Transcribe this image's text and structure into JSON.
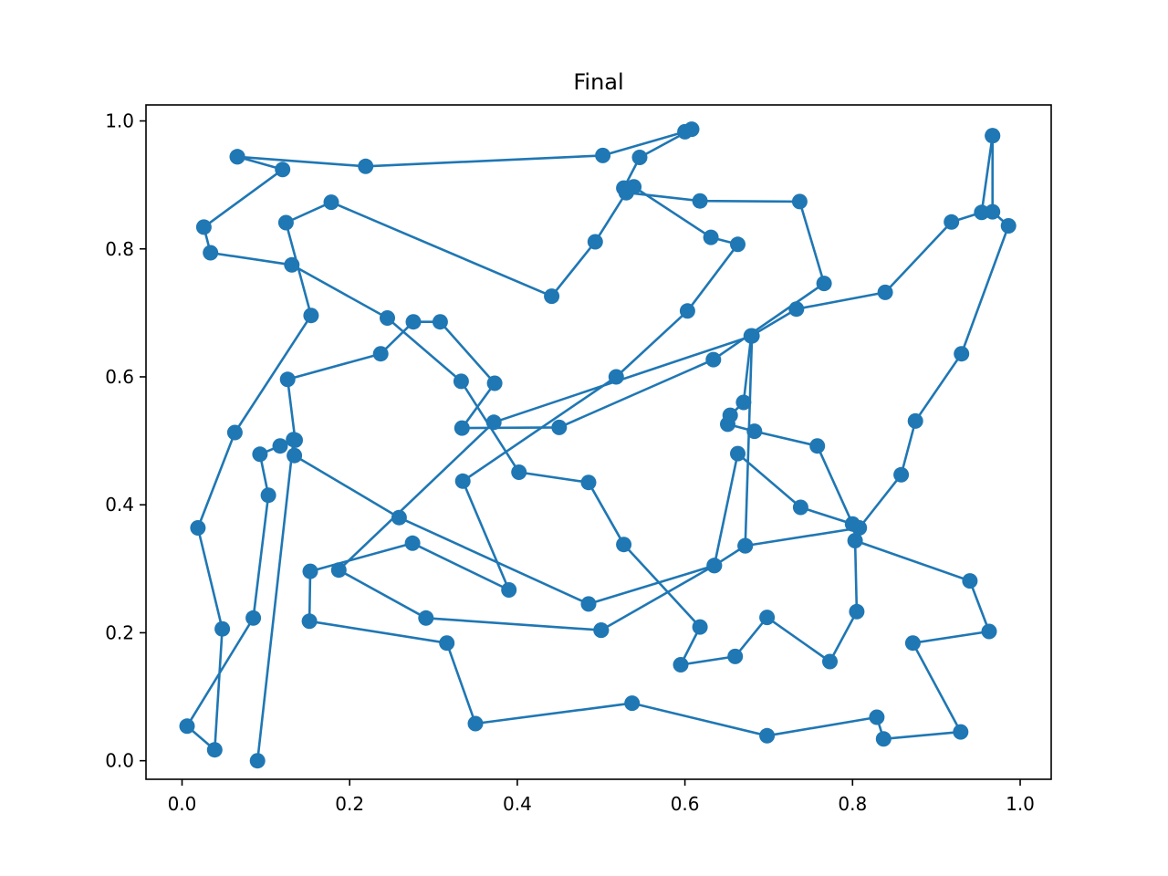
{
  "chart_data": {
    "type": "line",
    "title": "Final",
    "xlabel": "",
    "ylabel": "",
    "xlim": [
      -0.043,
      1.037
    ],
    "ylim": [
      -0.029,
      1.025
    ],
    "xticks": [
      0.0,
      0.2,
      0.4,
      0.6,
      0.8,
      1.0
    ],
    "xtick_labels": [
      "0.0",
      "0.2",
      "0.4",
      "0.6",
      "0.8",
      "1.0"
    ],
    "yticks": [
      0.0,
      0.2,
      0.4,
      0.6,
      0.8,
      1.0
    ],
    "ytick_labels": [
      "0.0",
      "0.2",
      "0.4",
      "0.6",
      "0.8",
      "1.0"
    ],
    "grid": false,
    "legend": "none",
    "marker": "circle",
    "series": [
      {
        "color": "#1f77b4",
        "points": [
          [
            0.066,
            0.944
          ],
          [
            0.219,
            0.929
          ],
          [
            0.502,
            0.946
          ],
          [
            0.6,
            0.983
          ],
          [
            0.608,
            0.987
          ],
          [
            0.546,
            0.943
          ],
          [
            0.527,
            0.895
          ],
          [
            0.539,
            0.897
          ],
          [
            0.631,
            0.818
          ],
          [
            0.663,
            0.807
          ],
          [
            0.603,
            0.703
          ],
          [
            0.518,
            0.6
          ],
          [
            0.335,
            0.437
          ],
          [
            0.39,
            0.267
          ],
          [
            0.275,
            0.34
          ],
          [
            0.153,
            0.296
          ],
          [
            0.152,
            0.218
          ],
          [
            0.316,
            0.184
          ],
          [
            0.35,
            0.058
          ],
          [
            0.537,
            0.09
          ],
          [
            0.698,
            0.039
          ],
          [
            0.829,
            0.068
          ],
          [
            0.837,
            0.034
          ],
          [
            0.929,
            0.045
          ],
          [
            0.872,
            0.184
          ],
          [
            0.963,
            0.202
          ],
          [
            0.94,
            0.281
          ],
          [
            0.803,
            0.344
          ],
          [
            0.805,
            0.233
          ],
          [
            0.773,
            0.155
          ],
          [
            0.698,
            0.224
          ],
          [
            0.66,
            0.163
          ],
          [
            0.595,
            0.15
          ],
          [
            0.618,
            0.209
          ],
          [
            0.527,
            0.338
          ],
          [
            0.485,
            0.435
          ],
          [
            0.402,
            0.451
          ],
          [
            0.333,
            0.593
          ],
          [
            0.245,
            0.692
          ],
          [
            0.131,
            0.775
          ],
          [
            0.034,
            0.794
          ],
          [
            0.026,
            0.834
          ],
          [
            0.12,
            0.924
          ],
          [
            0.066,
            0.944
          ]
        ]
      },
      {
        "color": "#1f77b4",
        "points": [
          [
            0.53,
            0.888
          ],
          [
            0.618,
            0.875
          ],
          [
            0.737,
            0.874
          ],
          [
            0.766,
            0.746
          ],
          [
            0.634,
            0.627
          ],
          [
            0.45,
            0.521
          ],
          [
            0.334,
            0.52
          ],
          [
            0.373,
            0.59
          ],
          [
            0.308,
            0.686
          ],
          [
            0.276,
            0.686
          ],
          [
            0.237,
            0.636
          ],
          [
            0.126,
            0.596
          ],
          [
            0.135,
            0.501
          ],
          [
            0.117,
            0.492
          ],
          [
            0.093,
            0.479
          ],
          [
            0.103,
            0.415
          ],
          [
            0.085,
            0.223
          ],
          [
            0.006,
            0.054
          ],
          [
            0.039,
            0.017
          ],
          [
            0.048,
            0.206
          ],
          [
            0.019,
            0.364
          ],
          [
            0.063,
            0.513
          ],
          [
            0.154,
            0.696
          ],
          [
            0.124,
            0.841
          ],
          [
            0.178,
            0.873
          ],
          [
            0.441,
            0.726
          ],
          [
            0.493,
            0.811
          ],
          [
            0.53,
            0.888
          ]
        ]
      },
      {
        "color": "#1f77b4",
        "points": [
          [
            0.967,
            0.977
          ],
          [
            0.954,
            0.857
          ],
          [
            0.918,
            0.842
          ],
          [
            0.839,
            0.732
          ],
          [
            0.733,
            0.706
          ],
          [
            0.679,
            0.664
          ],
          [
            0.67,
            0.56
          ],
          [
            0.654,
            0.54
          ],
          [
            0.651,
            0.526
          ],
          [
            0.683,
            0.515
          ],
          [
            0.758,
            0.492
          ],
          [
            0.8,
            0.37
          ],
          [
            0.738,
            0.396
          ],
          [
            0.663,
            0.48
          ],
          [
            0.635,
            0.305
          ],
          [
            0.485,
            0.245
          ],
          [
            0.259,
            0.38
          ],
          [
            0.134,
            0.477
          ],
          [
            0.133,
            0.502
          ],
          [
            0.09,
            0.0
          ]
        ]
      },
      {
        "color": "#1f77b4",
        "points": [
          [
            0.5,
            0.204
          ],
          [
            0.291,
            0.223
          ],
          [
            0.187,
            0.298
          ],
          [
            0.372,
            0.529
          ],
          [
            0.68,
            0.664
          ],
          [
            0.672,
            0.336
          ],
          [
            0.808,
            0.364
          ],
          [
            0.858,
            0.447
          ],
          [
            0.875,
            0.531
          ],
          [
            0.93,
            0.636
          ],
          [
            0.986,
            0.836
          ],
          [
            0.967,
            0.858
          ],
          [
            0.967,
            0.977
          ]
        ]
      },
      {
        "color": "#1f77b4",
        "points": [
          [
            0.5,
            0.204
          ],
          [
            0.635,
            0.305
          ],
          [
            0.672,
            0.336
          ]
        ]
      }
    ]
  }
}
